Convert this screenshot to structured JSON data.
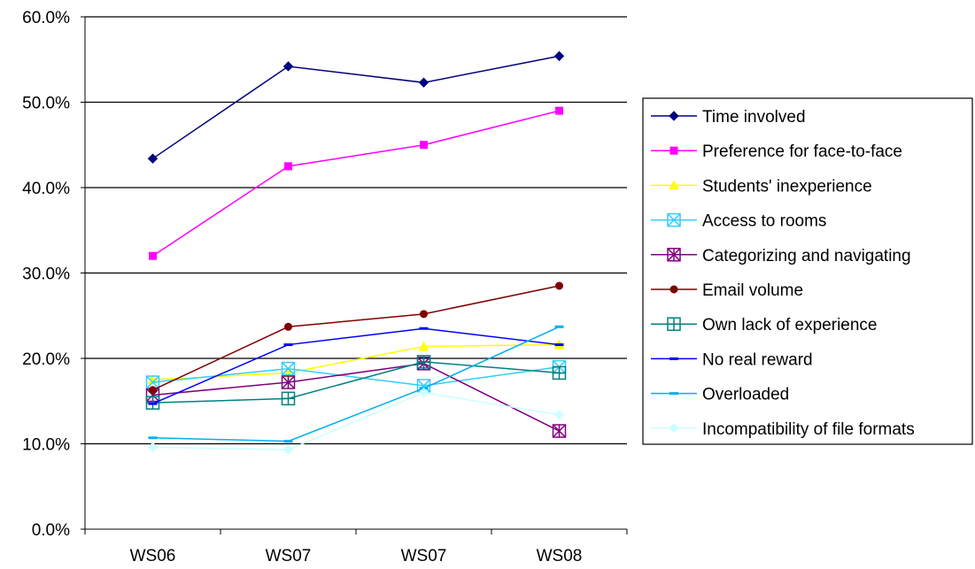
{
  "chart_data": {
    "type": "line",
    "title": "",
    "xlabel": "",
    "ylabel": "",
    "categories": [
      "WS06",
      "WS07",
      "WS07",
      "WS08"
    ],
    "ylim": [
      0,
      0.6
    ],
    "y_ticks": [
      "0.0%",
      "10.0%",
      "20.0%",
      "30.0%",
      "40.0%",
      "50.0%",
      "60.0%"
    ],
    "grid": "horizontal major gridlines",
    "legend_position": "right",
    "series": [
      {
        "name": "Time involved",
        "color": "#000080",
        "marker": "diamond",
        "values": [
          0.434,
          0.542,
          0.523,
          0.554
        ]
      },
      {
        "name": "Preference for face-to-face",
        "color": "#FF00FF",
        "marker": "square",
        "values": [
          0.32,
          0.425,
          0.45,
          0.49
        ]
      },
      {
        "name": "Students' inexperience",
        "color": "#FFFF00",
        "marker": "triangle",
        "values": [
          0.175,
          0.183,
          0.214,
          0.216
        ]
      },
      {
        "name": "Access to rooms",
        "color": "#33CCFF",
        "marker": "boxed-x",
        "values": [
          0.172,
          0.188,
          0.168,
          0.19
        ]
      },
      {
        "name": "Categorizing  and navigating",
        "color": "#800080",
        "marker": "boxed-star",
        "values": [
          0.157,
          0.172,
          0.194,
          0.115
        ]
      },
      {
        "name": "Email volume",
        "color": "#800000",
        "marker": "circle",
        "values": [
          0.163,
          0.237,
          0.252,
          0.285
        ]
      },
      {
        "name": "Own lack of experience",
        "color": "#008080",
        "marker": "boxed-plus",
        "values": [
          0.148,
          0.153,
          0.196,
          0.183
        ]
      },
      {
        "name": "No real reward",
        "color": "#0000FF",
        "marker": "dash",
        "values": [
          0.147,
          0.216,
          0.235,
          0.216
        ]
      },
      {
        "name": "Overloaded",
        "color": "#00B0F0",
        "marker": "dash",
        "values": [
          0.107,
          0.103,
          0.165,
          0.237
        ]
      },
      {
        "name": "Incompatibility of file formats",
        "color": "#CCFFFF",
        "marker": "diamond",
        "values": [
          0.096,
          0.093,
          0.16,
          0.134
        ]
      }
    ]
  }
}
